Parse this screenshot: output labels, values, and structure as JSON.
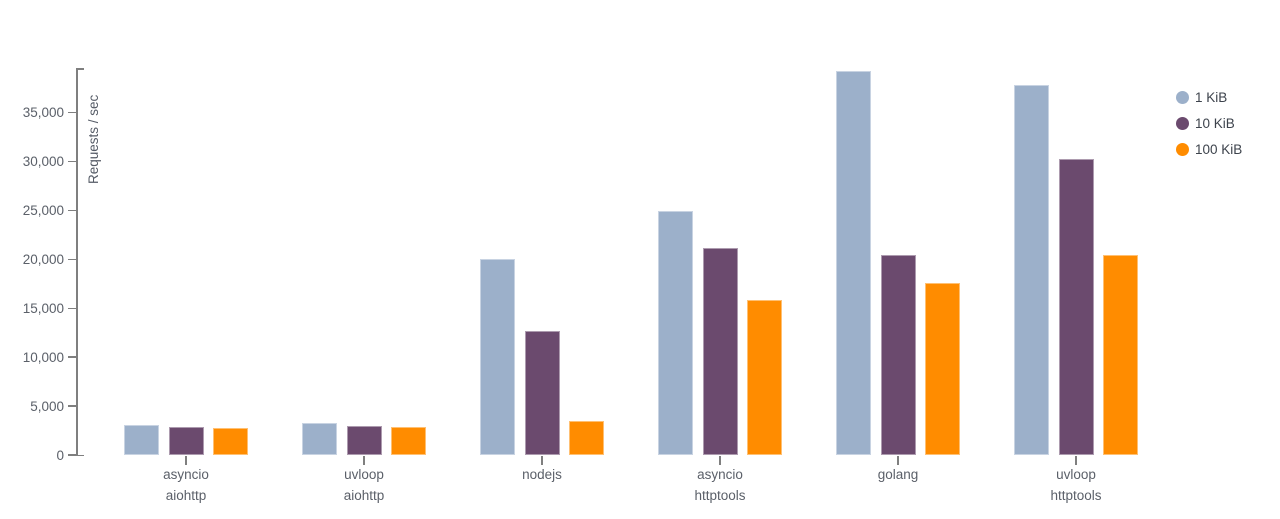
{
  "chart_data": {
    "type": "bar",
    "title": "",
    "xlabel": "",
    "ylabel": "Requests / sec",
    "ylim": [
      0,
      39500
    ],
    "yticks": [
      0,
      5000,
      10000,
      15000,
      20000,
      25000,
      30000,
      35000
    ],
    "grid": false,
    "legend_position": "top-right",
    "categories": [
      "asyncio\naiohttp",
      "uvloop\naiohttp",
      "nodejs",
      "asyncio\nhttptools",
      "golang",
      "uvloop\nhttptools"
    ],
    "series": [
      {
        "name": "1 KiB",
        "color": "#9cb0ca",
        "values": [
          3100,
          3300,
          20000,
          24900,
          39300,
          37800
        ]
      },
      {
        "name": "10 KiB",
        "color": "#6b4a6e",
        "values": [
          2900,
          3000,
          12700,
          21200,
          20400,
          30300
        ]
      },
      {
        "name": "100 KiB",
        "color": "#ff8c00",
        "values": [
          2800,
          2900,
          3500,
          15800,
          17600,
          20400
        ]
      }
    ],
    "colors": {
      "axis": "#7f7f7f",
      "tick_text": "#5b6069",
      "legend_text": "#3d434c",
      "background": "#ffffff"
    }
  }
}
